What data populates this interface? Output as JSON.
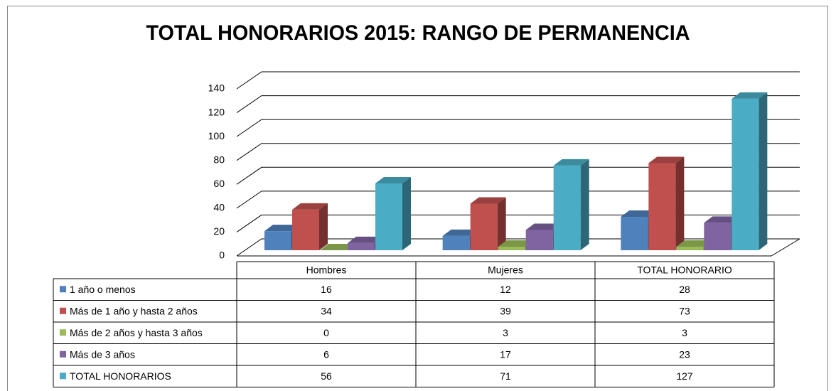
{
  "chart_data": {
    "type": "bar3d",
    "title": "TOTAL HONORARIOS 2015: RANGO DE PERMANENCIA",
    "categories": [
      "Hombres",
      "Mujeres",
      "TOTAL HONORARIO"
    ],
    "series": [
      {
        "name": "1 año o menos",
        "color": "#4f81bd",
        "values": [
          16,
          12,
          28
        ]
      },
      {
        "name": "Más de 1 año y hasta 2 años",
        "color": "#c0504d",
        "values": [
          34,
          39,
          73
        ]
      },
      {
        "name": "Más de 2 años y hasta 3 años",
        "color": "#9bbb59",
        "values": [
          0,
          3,
          3
        ]
      },
      {
        "name": "Más de 3 años",
        "color": "#8064a2",
        "values": [
          6,
          17,
          23
        ]
      },
      {
        "name": "TOTAL HONORARIOS",
        "color": "#4bacc6",
        "values": [
          56,
          71,
          127
        ]
      }
    ],
    "ylim": [
      0,
      140
    ],
    "yticks": [
      0,
      20,
      40,
      60,
      80,
      100,
      120,
      140
    ],
    "grid": true
  }
}
